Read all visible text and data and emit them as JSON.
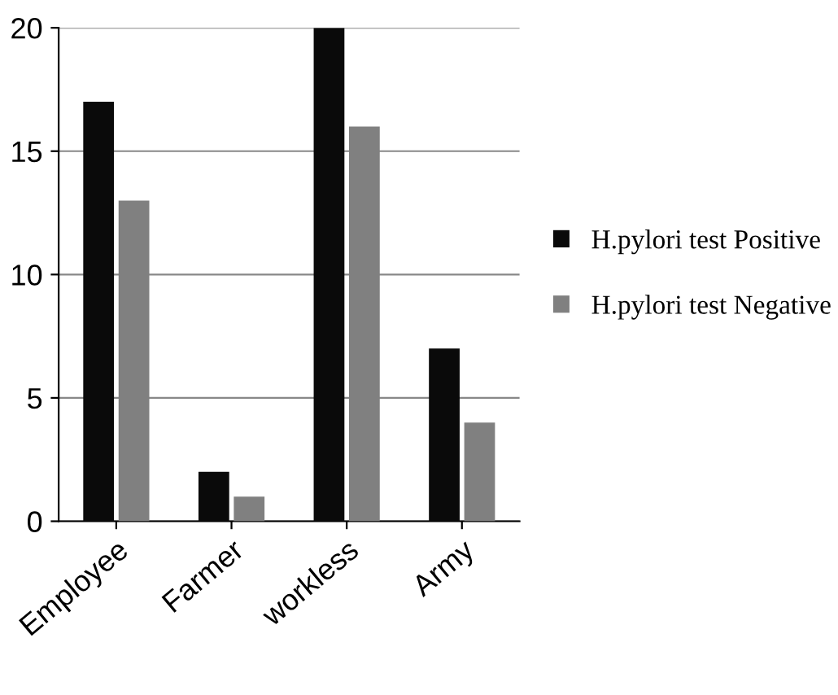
{
  "chart_data": {
    "type": "bar",
    "categories": [
      "Employee",
      "Farmer",
      "workless",
      "Army"
    ],
    "series": [
      {
        "name": "H.pylori test Positive",
        "color": "#0a0a0a",
        "values": [
          17,
          2,
          20,
          7
        ]
      },
      {
        "name": "H.pylori test Negative",
        "color": "#808080",
        "values": [
          13,
          1,
          16,
          4
        ]
      }
    ],
    "ylim": [
      0,
      20
    ],
    "yticks": [
      0,
      5,
      10,
      15,
      20
    ],
    "grid": "y",
    "legend": "right"
  }
}
